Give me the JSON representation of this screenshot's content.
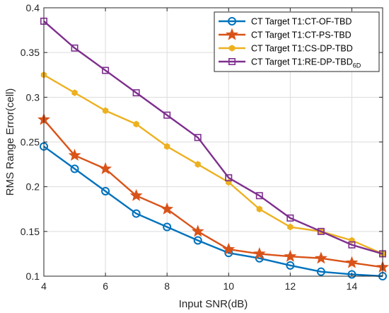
{
  "chart_data": {
    "type": "line",
    "xlabel": "Input SNR(dB)",
    "ylabel": "RMS Range Error(cell)",
    "xlim": [
      4,
      15
    ],
    "ylim": [
      0.1,
      0.4
    ],
    "xticks": [
      4,
      6,
      8,
      10,
      12,
      14
    ],
    "yticks": [
      0.1,
      0.15,
      0.2,
      0.25,
      0.3,
      0.35,
      0.4
    ],
    "xtick_labels": [
      "4",
      "6",
      "8",
      "10",
      "12",
      "14"
    ],
    "ytick_labels": [
      "0.1",
      "0.15",
      "0.2",
      "0.25",
      "0.3",
      "0.35",
      "0.4"
    ],
    "grid": true,
    "legend_position": "top-right",
    "x": [
      4,
      5,
      6,
      7,
      8,
      9,
      10,
      11,
      12,
      13,
      14,
      15
    ],
    "series": [
      {
        "name": "CT Target T1:CT-OF-TBD",
        "color": "#0072BD",
        "marker": "circle",
        "values": [
          0.245,
          0.22,
          0.195,
          0.17,
          0.155,
          0.14,
          0.126,
          0.12,
          0.112,
          0.105,
          0.102,
          0.1
        ]
      },
      {
        "name": "CT Target T1:CT-PS-TBD",
        "color": "#D95319",
        "marker": "star",
        "values": [
          0.275,
          0.235,
          0.22,
          0.19,
          0.175,
          0.15,
          0.13,
          0.125,
          0.122,
          0.12,
          0.115,
          0.11
        ]
      },
      {
        "name": "CT Target T1:CS-DP-TBD",
        "color": "#EDB120",
        "marker": "hexagon",
        "values": [
          0.325,
          0.305,
          0.285,
          0.27,
          0.245,
          0.225,
          0.205,
          0.175,
          0.155,
          0.15,
          0.14,
          0.125
        ]
      },
      {
        "name": "CT Target T1:RE-DP-TBD",
        "name_subscript": "6D",
        "color": "#7E2F8E",
        "marker": "square",
        "values": [
          0.385,
          0.355,
          0.33,
          0.305,
          0.28,
          0.255,
          0.21,
          0.19,
          0.165,
          0.15,
          0.135,
          0.125
        ]
      }
    ]
  }
}
